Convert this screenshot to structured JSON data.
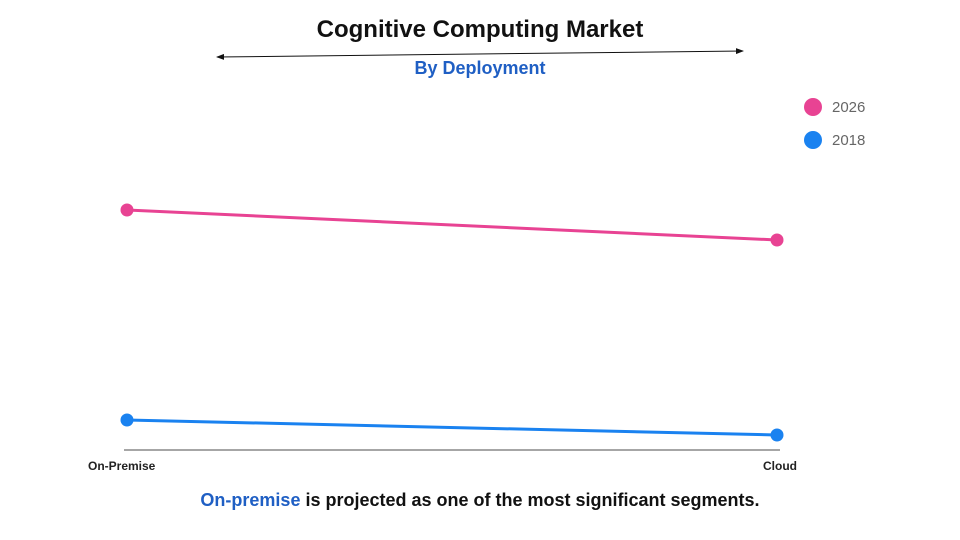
{
  "chart_data": {
    "type": "line",
    "title": "Cognitive Computing Market",
    "subtitle": "By Deployment",
    "categories": [
      "On-Premise",
      "Cloud"
    ],
    "series": [
      {
        "name": "2026",
        "values": [
          0.8,
          0.7
        ],
        "color": "#e84393"
      },
      {
        "name": "2018",
        "values": [
          0.1,
          0.05
        ],
        "color": "#1a82f0"
      }
    ],
    "ylim": [
      0,
      1
    ],
    "grid": false,
    "legend_position": "top-right"
  },
  "colors": {
    "subtitle": "#1f5fc4",
    "highlight": "#1f5fc4",
    "axis": "#888888"
  },
  "footer": {
    "highlight": "On-premise",
    "rest": " is projected as one of the most significant segments."
  }
}
